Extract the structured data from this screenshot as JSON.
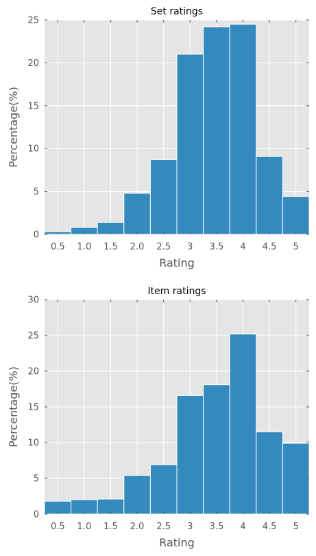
{
  "chart_data": [
    {
      "type": "bar",
      "title": "Set ratings",
      "xlabel": "Rating",
      "ylabel": "Percentage(%)",
      "categories": [
        "0.5",
        "1.0",
        "1.5",
        "2.0",
        "2.5",
        "3",
        "3.5",
        "4",
        "4.5",
        "5"
      ],
      "values": [
        0.3,
        0.8,
        1.4,
        4.8,
        8.7,
        21.0,
        24.2,
        24.5,
        9.1,
        4.4
      ],
      "ylim": [
        0,
        25
      ],
      "yticks": [
        "0",
        "5",
        "10",
        "15",
        "20",
        "25"
      ],
      "grid": true,
      "bar_color": "#348abd",
      "background_color": "#e5e5e5"
    },
    {
      "type": "bar",
      "title": "Item ratings",
      "xlabel": "Rating",
      "ylabel": "Percentage(%)",
      "categories": [
        "0.5",
        "1.0",
        "1.5",
        "2.0",
        "2.5",
        "3",
        "3.5",
        "4",
        "4.5",
        "5"
      ],
      "values": [
        1.8,
        2.0,
        2.1,
        5.4,
        6.9,
        16.6,
        18.1,
        25.2,
        11.5,
        9.9
      ],
      "ylim": [
        0,
        30
      ],
      "yticks": [
        "0",
        "5",
        "10",
        "15",
        "20",
        "25",
        "30"
      ],
      "grid": true,
      "bar_color": "#348abd",
      "background_color": "#e5e5e5"
    }
  ]
}
